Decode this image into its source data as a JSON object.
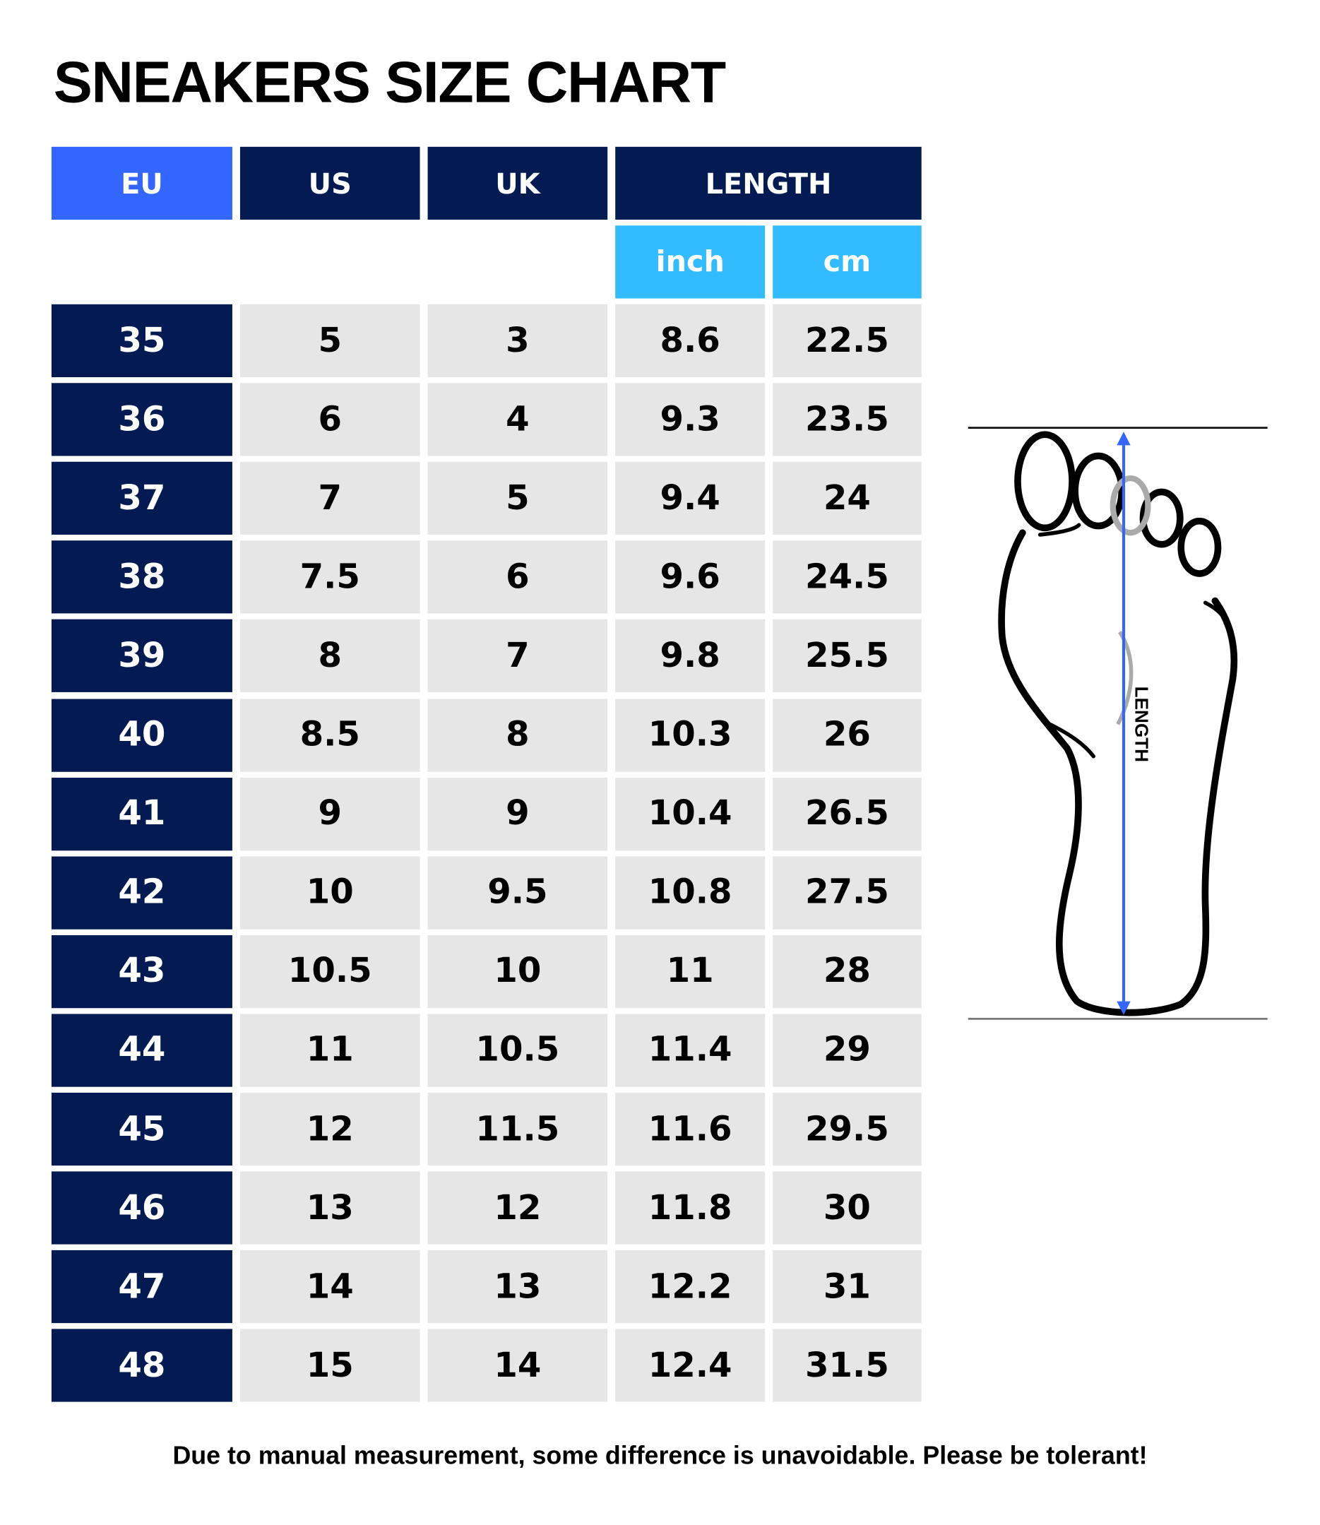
{
  "title": "SNEAKERS SIZE CHART",
  "headers": {
    "eu": "EU",
    "us": "US",
    "uk": "UK",
    "length": "LENGTH",
    "inch": "inch",
    "cm": "cm"
  },
  "rows": [
    [
      "35",
      "5",
      "3",
      "8.6",
      "22.5"
    ],
    [
      "36",
      "6",
      "4",
      "9.3",
      "23.5"
    ],
    [
      "37",
      "7",
      "5",
      "9.4",
      "24"
    ],
    [
      "38",
      "7.5",
      "6",
      "9.6",
      "24.5"
    ],
    [
      "39",
      "8",
      "7",
      "9.8",
      "25.5"
    ],
    [
      "40",
      "8.5",
      "8",
      "10.3",
      "26"
    ],
    [
      "41",
      "9",
      "9",
      "10.4",
      "26.5"
    ],
    [
      "42",
      "10",
      "9.5",
      "10.8",
      "27.5"
    ],
    [
      "43",
      "10.5",
      "10",
      "11",
      "28"
    ],
    [
      "44",
      "11",
      "10.5",
      "11.4",
      "29"
    ],
    [
      "45",
      "12",
      "11.5",
      "11.6",
      "29.5"
    ],
    [
      "46",
      "13",
      "12",
      "11.8",
      "30"
    ],
    [
      "47",
      "14",
      "13",
      "12.2",
      "31"
    ],
    [
      "48",
      "15",
      "14",
      "12.4",
      "31.5"
    ]
  ],
  "diagram": {
    "label": "LENGTH",
    "arrow_color": "#3366ff"
  },
  "footer": "Due to manual measurement, some difference is unavoidable. Please be tolerant!",
  "colors": {
    "navy": "#041a52",
    "blue": "#3366ff",
    "sky": "#33bbff",
    "cell": "#e6e6e6"
  }
}
